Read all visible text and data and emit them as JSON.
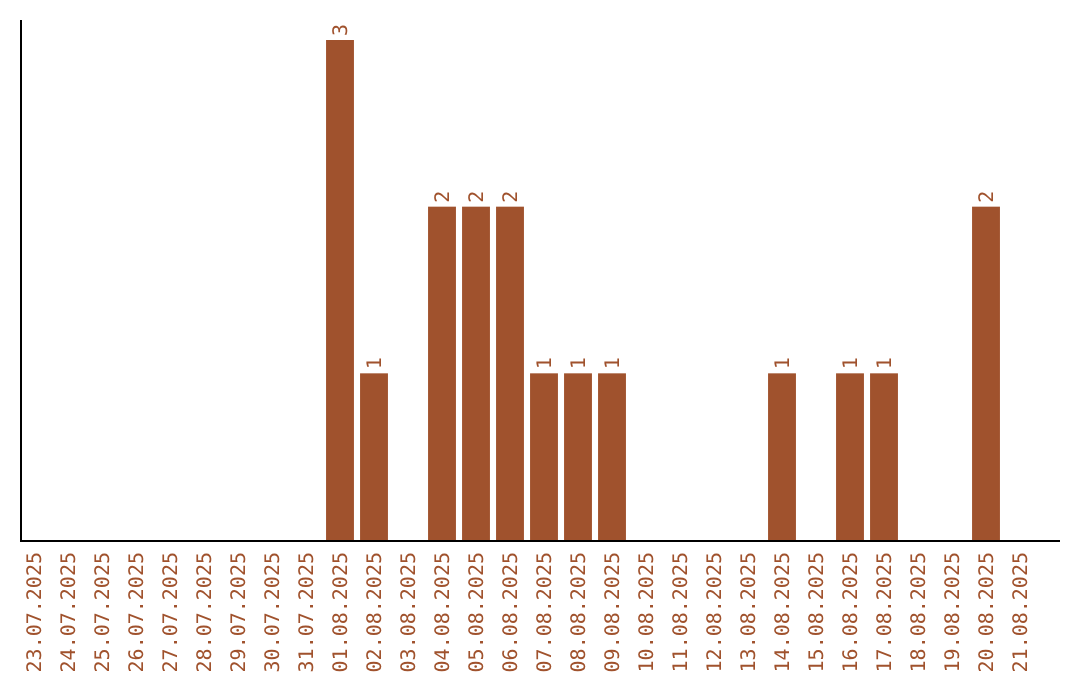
{
  "chart_data": {
    "type": "bar",
    "categories": [
      "23.07.2025",
      "24.07.2025",
      "25.07.2025",
      "26.07.2025",
      "27.07.2025",
      "28.07.2025",
      "29.07.2025",
      "30.07.2025",
      "31.07.2025",
      "01.08.2025",
      "02.08.2025",
      "03.08.2025",
      "04.08.2025",
      "05.08.2025",
      "06.08.2025",
      "07.08.2025",
      "08.08.2025",
      "09.08.2025",
      "10.08.2025",
      "11.08.2025",
      "12.08.2025",
      "13.08.2025",
      "14.08.2025",
      "15.08.2025",
      "16.08.2025",
      "17.08.2025",
      "18.08.2025",
      "19.08.2025",
      "20.08.2025",
      "21.08.2025"
    ],
    "values": [
      0,
      0,
      0,
      0,
      0,
      0,
      0,
      0,
      0,
      3,
      1,
      0,
      2,
      2,
      2,
      1,
      1,
      1,
      0,
      0,
      0,
      0,
      1,
      0,
      1,
      1,
      0,
      0,
      2,
      0
    ],
    "value_labels": [
      null,
      null,
      null,
      null,
      null,
      null,
      null,
      null,
      null,
      "3",
      "1",
      null,
      "2",
      "2",
      "2",
      "1",
      "1",
      "1",
      null,
      null,
      null,
      null,
      "1",
      null,
      "1",
      "1",
      null,
      null,
      "2",
      null
    ],
    "color": "#a0522d"
  }
}
